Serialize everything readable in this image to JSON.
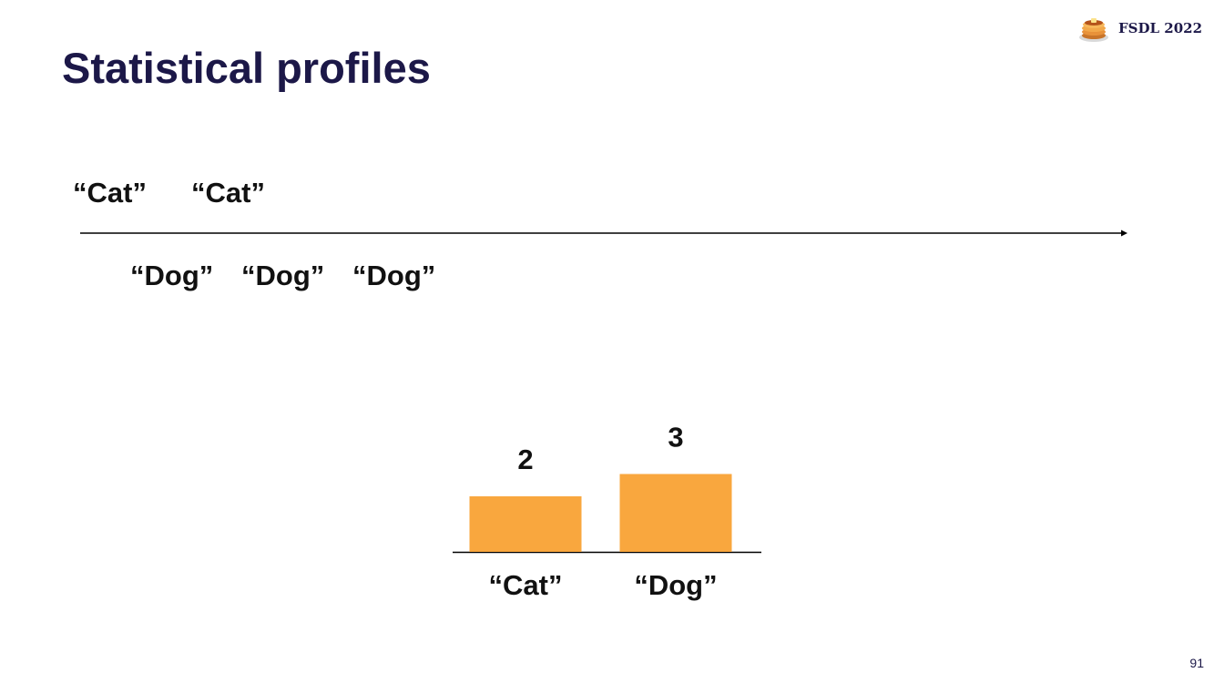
{
  "slide": {
    "title": "Statistical profiles",
    "page_number": "91"
  },
  "brand": {
    "label": "FSDL 2022",
    "logo_icon": "pancakes-icon"
  },
  "timeline": {
    "above": [
      "“Cat”",
      "“Cat”"
    ],
    "below": [
      "“Dog”",
      "“Dog”",
      "“Dog”"
    ]
  },
  "colors": {
    "title": "#1c1848",
    "bar": "#f9a73e",
    "text": "#111111"
  },
  "chart_data": {
    "type": "bar",
    "categories": [
      "“Cat”",
      "“Dog”"
    ],
    "values": [
      2,
      3
    ],
    "title": "",
    "xlabel": "",
    "ylabel": "",
    "ylim": [
      0,
      3
    ],
    "grid": false,
    "data_labels": true
  }
}
